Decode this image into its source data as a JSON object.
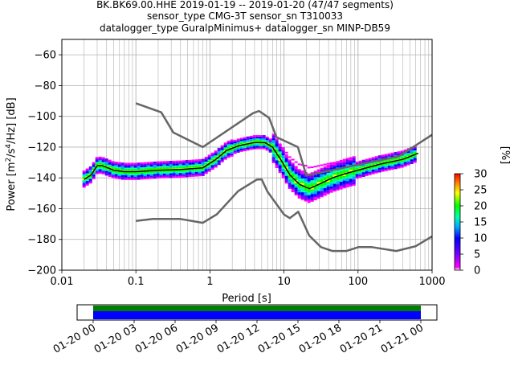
{
  "title": {
    "line1": "BK.BK69.00.HHE   2019-01-19 -- 2019-01-20  (47/47 segments)",
    "line2": "sensor_type CMG-3T sensor_sn T310033",
    "line3": "datalogger_type GuralpMinimus+ datalogger_sn MINP-DB59"
  },
  "chart_data": {
    "type": "heatmap",
    "xlabel": "Period [s]",
    "ylabel": "Power [m²/s⁴/Hz] [dB]",
    "xscale": "log",
    "xlim": [
      0.01,
      1000
    ],
    "ylim": [
      -200,
      -50
    ],
    "xticks": [
      "0.01",
      "0.1",
      "1",
      "10",
      "100",
      "1000"
    ],
    "yticks": [
      "−200",
      "−180",
      "−160",
      "−140",
      "−120",
      "−100",
      "−80",
      "−60"
    ],
    "grid": true,
    "noise_model_high": {
      "x": [
        0.1,
        0.22,
        0.32,
        0.8,
        3.8,
        4.6,
        6.3,
        7.9,
        15.4,
        20,
        354.8,
        1000
      ],
      "y": [
        -91.5,
        -97.4,
        -110.5,
        -120.0,
        -98.0,
        -96.5,
        -101.0,
        -113.5,
        -120.0,
        -138.5,
        -126.0,
        -112.0
      ]
    },
    "noise_model_low": {
      "x": [
        0.1,
        0.17,
        0.4,
        0.8,
        1.24,
        2.4,
        4.3,
        5.0,
        6.0,
        10.0,
        12.0,
        15.6,
        21.9,
        31.6,
        45.0,
        70.0,
        101.0,
        154.0,
        328.0,
        600.0,
        1000.0
      ],
      "y": [
        -168.0,
        -166.7,
        -166.7,
        -169.2,
        -163.7,
        -148.6,
        -141.1,
        -141.0,
        -149.0,
        -163.8,
        -166.2,
        -162.0,
        -177.5,
        -185.0,
        -187.5,
        -187.5,
        -185.0,
        -185.0,
        -187.5,
        -184.4,
        -178.0
      ]
    },
    "mean_curve": {
      "x": [
        0.02,
        0.025,
        0.03,
        0.035,
        0.05,
        0.07,
        0.1,
        0.2,
        0.4,
        0.8,
        1.2,
        1.7,
        2.5,
        4.0,
        5.5,
        7.0,
        9.0,
        12.0,
        16.0,
        22.0,
        30.0,
        45.0,
        70.0,
        100.0,
        200.0,
        400.0,
        650.0
      ],
      "y": [
        -141.0,
        -138.0,
        -132.0,
        -132.0,
        -135.0,
        -136.0,
        -136.0,
        -135.0,
        -134.5,
        -133.5,
        -128.0,
        -122.0,
        -119.0,
        -117.0,
        -117.0,
        -120.0,
        -128.0,
        -138.0,
        -144.0,
        -147.0,
        -144.0,
        -140.0,
        -137.0,
        -135.0,
        -131.0,
        -128.0,
        -124.0
      ]
    },
    "colorbar": {
      "label": "[%]",
      "min": 0,
      "max": 30,
      "ticks": [
        "0",
        "5",
        "10",
        "15",
        "20",
        "25",
        "30"
      ]
    },
    "timeline": {
      "tick_labels": [
        "01-20 00",
        "01-20 03",
        "01-20 06",
        "01-20 09",
        "01-20 12",
        "01-20 15",
        "01-20 18",
        "01-20 21",
        "01-21 00"
      ],
      "colors": {
        "upper": "#008000",
        "lower": "#0000ff"
      }
    },
    "colors": {
      "model": "#666666",
      "mean": "#000000",
      "grid": "#b0b0b0"
    }
  }
}
